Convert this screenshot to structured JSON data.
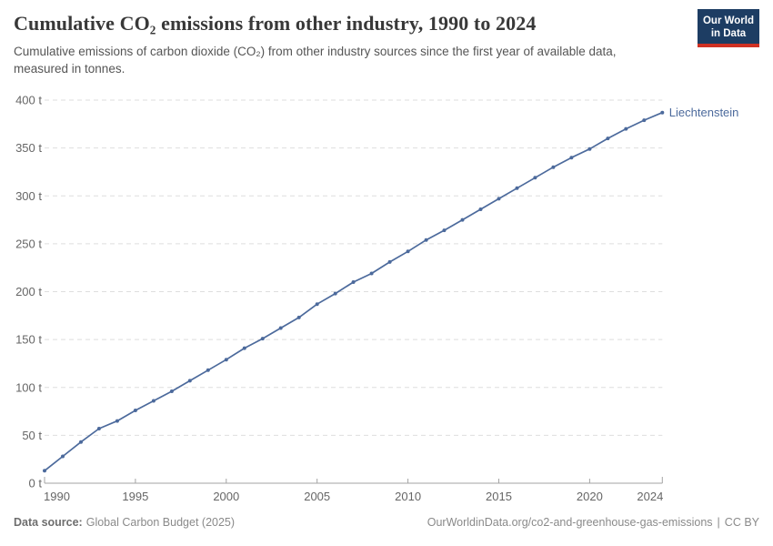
{
  "header": {
    "title": "Cumulative CO₂ emissions from other industry, 1990 to 2024",
    "subtitle": "Cumulative emissions of carbon dioxide (CO₂) from other industry sources since the first year of available data, measured in tonnes."
  },
  "logo": {
    "line1": "Our World",
    "line2": "in Data",
    "bg_color": "#1d3d63",
    "accent_color": "#cf3123"
  },
  "chart_data": {
    "type": "line",
    "title": "Cumulative CO₂ emissions from other industry, 1990 to 2024",
    "xlabel": "",
    "ylabel": "",
    "unit": "t",
    "x": [
      1990,
      1991,
      1992,
      1993,
      1994,
      1995,
      1996,
      1997,
      1998,
      1999,
      2000,
      2001,
      2002,
      2003,
      2004,
      2005,
      2006,
      2007,
      2008,
      2009,
      2010,
      2011,
      2012,
      2013,
      2014,
      2015,
      2016,
      2017,
      2018,
      2019,
      2020,
      2021,
      2022,
      2023,
      2024
    ],
    "series": [
      {
        "name": "Liechtenstein",
        "color": "#4C6A9C",
        "values": [
          13,
          28,
          43,
          57,
          65,
          76,
          86,
          96,
          107,
          118,
          129,
          141,
          151,
          162,
          173,
          187,
          198,
          210,
          219,
          231,
          242,
          254,
          264,
          275,
          286,
          297,
          308,
          319,
          330,
          340,
          349,
          360,
          370,
          379,
          387
        ]
      }
    ],
    "xlim": [
      1990,
      2024
    ],
    "ylim": [
      0,
      400
    ],
    "xticks": [
      1990,
      1995,
      2000,
      2005,
      2010,
      2015,
      2020,
      2024
    ],
    "xtick_labels": [
      "1990",
      "1995",
      "2000",
      "2005",
      "2010",
      "2015",
      "2020",
      "2024"
    ],
    "ytick_values": [
      0,
      50,
      100,
      150,
      200,
      250,
      300,
      350,
      400
    ],
    "ytick_labels": [
      "0 t",
      "50 t",
      "100 t",
      "150 t",
      "200 t",
      "250 t",
      "300 t",
      "350 t",
      "400 t"
    ],
    "grid": "horizontal-dashed",
    "legend": "end-of-line-label",
    "end_label": "Liechtenstein"
  },
  "footer": {
    "data_source_label": "Data source:",
    "data_source_value": "Global Carbon Budget (2025)",
    "credit_url": "OurWorldinData.org/co2-and-greenhouse-gas-emissions",
    "credit_separator": "|",
    "credit_license": "CC BY"
  },
  "colors": {
    "line": "#4C6A9C",
    "grid": "#dedede",
    "axis": "#a3a3a3",
    "tick_label": "#666666"
  }
}
